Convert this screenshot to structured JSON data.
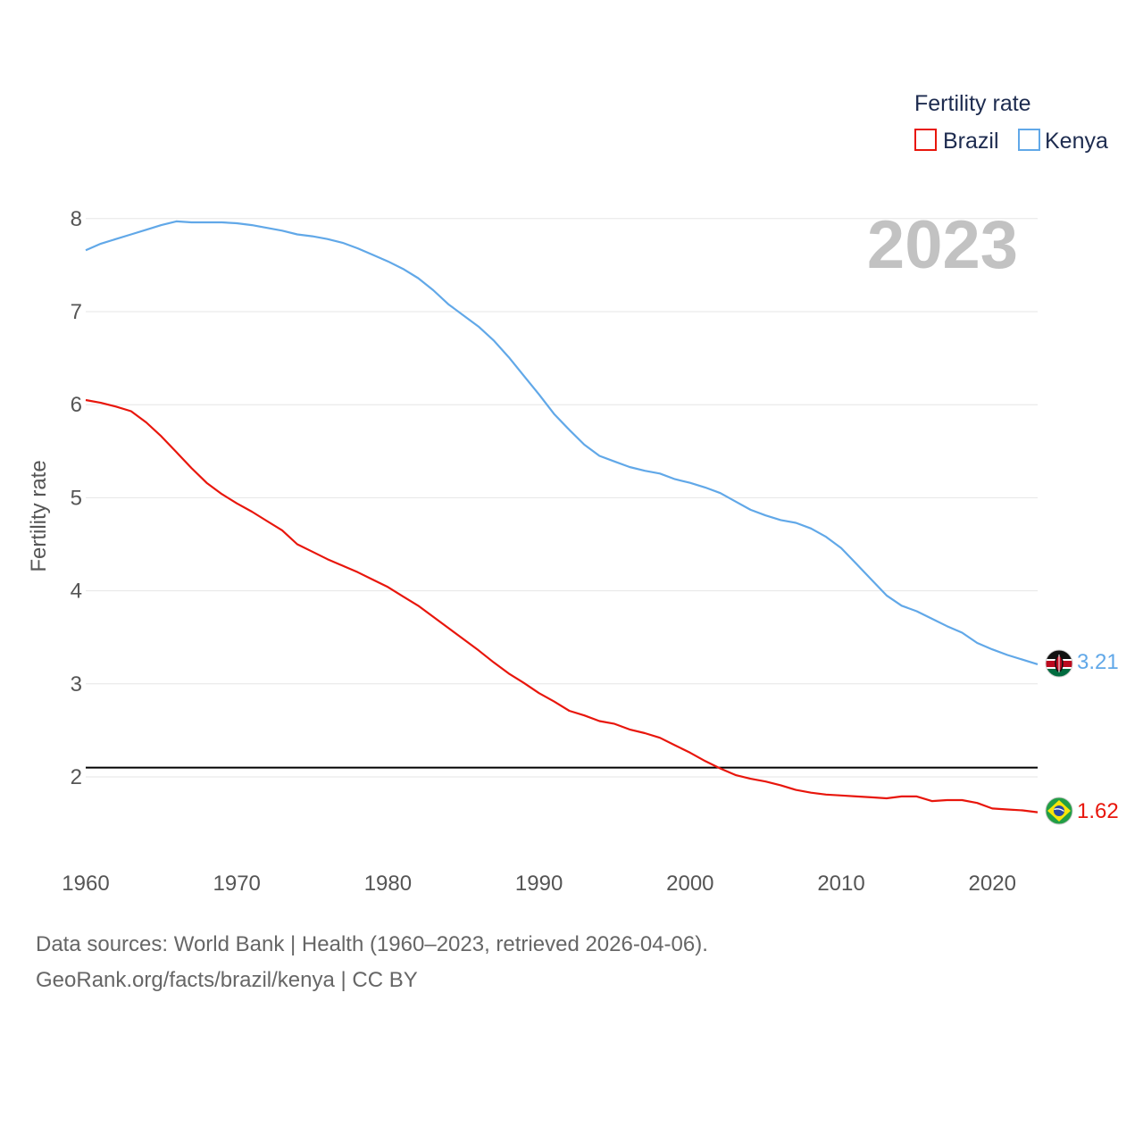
{
  "chart_data": {
    "type": "line",
    "title": "",
    "watermark_year": "2023",
    "xlabel": "",
    "ylabel": "Fertility rate",
    "xlim": [
      1960,
      2023
    ],
    "ylim": [
      1.2,
      8.5
    ],
    "x_ticks": [
      1960,
      1970,
      1980,
      1990,
      2000,
      2010,
      2020
    ],
    "y_ticks": [
      2,
      3,
      4,
      5,
      6,
      7,
      8
    ],
    "grid": true,
    "legend": {
      "title": "Fertility rate",
      "position": "top-right",
      "entries": [
        "Brazil",
        "Kenya"
      ]
    },
    "reference_line": {
      "y": 2.1,
      "color": "#000000"
    },
    "years": [
      1960,
      1961,
      1962,
      1963,
      1964,
      1965,
      1966,
      1967,
      1968,
      1969,
      1970,
      1971,
      1972,
      1973,
      1974,
      1975,
      1976,
      1977,
      1978,
      1979,
      1980,
      1981,
      1982,
      1983,
      1984,
      1985,
      1986,
      1987,
      1988,
      1989,
      1990,
      1991,
      1992,
      1993,
      1994,
      1995,
      1996,
      1997,
      1998,
      1999,
      2000,
      2001,
      2002,
      2003,
      2004,
      2005,
      2006,
      2007,
      2008,
      2009,
      2010,
      2011,
      2012,
      2013,
      2014,
      2015,
      2016,
      2017,
      2018,
      2019,
      2020,
      2021,
      2022,
      2023
    ],
    "series": [
      {
        "name": "Brazil",
        "color": "#e8160c",
        "end_label": "1.62",
        "flag": "brazil-flag",
        "values": [
          6.05,
          6.02,
          5.98,
          5.93,
          5.81,
          5.66,
          5.49,
          5.32,
          5.16,
          5.04,
          4.94,
          4.85,
          4.75,
          4.65,
          4.5,
          4.42,
          4.34,
          4.27,
          4.2,
          4.12,
          4.04,
          3.94,
          3.84,
          3.72,
          3.6,
          3.48,
          3.36,
          3.23,
          3.11,
          3.01,
          2.9,
          2.81,
          2.71,
          2.66,
          2.6,
          2.57,
          2.51,
          2.47,
          2.42,
          2.34,
          2.26,
          2.17,
          2.09,
          2.02,
          1.98,
          1.95,
          1.91,
          1.86,
          1.83,
          1.81,
          1.8,
          1.79,
          1.78,
          1.77,
          1.79,
          1.79,
          1.74,
          1.75,
          1.75,
          1.72,
          1.66,
          1.65,
          1.64,
          1.62
        ]
      },
      {
        "name": "Kenya",
        "color": "#61a8e8",
        "end_label": "3.21",
        "flag": "kenya-flag",
        "values": [
          7.66,
          7.73,
          7.78,
          7.83,
          7.88,
          7.93,
          7.97,
          7.96,
          7.96,
          7.96,
          7.95,
          7.93,
          7.9,
          7.87,
          7.83,
          7.81,
          7.78,
          7.74,
          7.68,
          7.61,
          7.54,
          7.46,
          7.36,
          7.23,
          7.08,
          6.96,
          6.84,
          6.69,
          6.51,
          6.31,
          6.11,
          5.9,
          5.73,
          5.57,
          5.45,
          5.39,
          5.33,
          5.29,
          5.26,
          5.2,
          5.16,
          5.11,
          5.05,
          4.96,
          4.87,
          4.81,
          4.76,
          4.73,
          4.67,
          4.58,
          4.46,
          4.29,
          4.12,
          3.95,
          3.84,
          3.78,
          3.7,
          3.62,
          3.55,
          3.44,
          3.37,
          3.31,
          3.26,
          3.21
        ]
      }
    ]
  },
  "footer": {
    "line1": "Data sources: World Bank | Health (1960–2023, retrieved 2026-04-06).",
    "line2": "GeoRank.org/facts/brazil/kenya | CC BY"
  }
}
